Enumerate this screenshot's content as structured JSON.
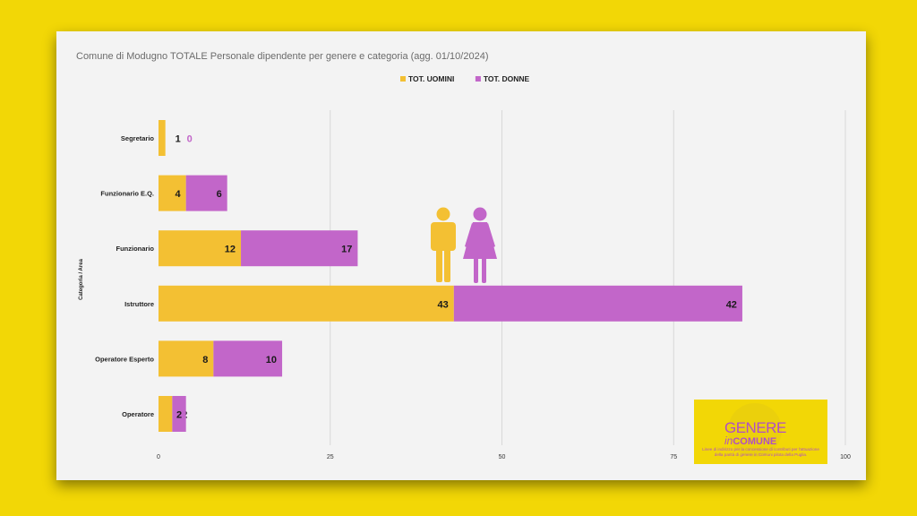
{
  "chart_data": {
    "type": "bar",
    "orientation": "horizontal",
    "stacked": true,
    "title": "Comune di Modugno TOTALE Personale dipendente per genere e categoria (agg. 01/10/2024)",
    "ylabel": "Categoria / Area",
    "xlabel": "",
    "categories": [
      "Segretario",
      "Funzionario E.Q.",
      "Funzionario",
      "Istruttore",
      "Operatore Esperto",
      "Operatore"
    ],
    "series": [
      {
        "name": "TOT. UOMINI",
        "color": "#f3c033",
        "values": [
          1,
          4,
          12,
          43,
          8,
          2
        ]
      },
      {
        "name": "TOT. DONNE",
        "color": "#c266c9",
        "values": [
          0,
          6,
          17,
          42,
          10,
          2
        ]
      }
    ],
    "xlim": [
      0,
      100
    ],
    "xticks": [
      0,
      25,
      50,
      75,
      100
    ],
    "grid": true,
    "legend": "top-center"
  },
  "icons": {
    "man": "man-figure-icon",
    "woman": "woman-figure-icon",
    "man_color": "#f3c033",
    "woman_color": "#c266c9"
  },
  "logo": {
    "line1": "GENERE",
    "line2_italic": "in",
    "line2": "COMUNE",
    "tagline": "Linee di indirizzo per la concessione di contributi per l'attuazione della parità di genere in Comuni pilota della Puglia.",
    "bg_color": "#f2d706",
    "text_color": "#b14fc5"
  }
}
